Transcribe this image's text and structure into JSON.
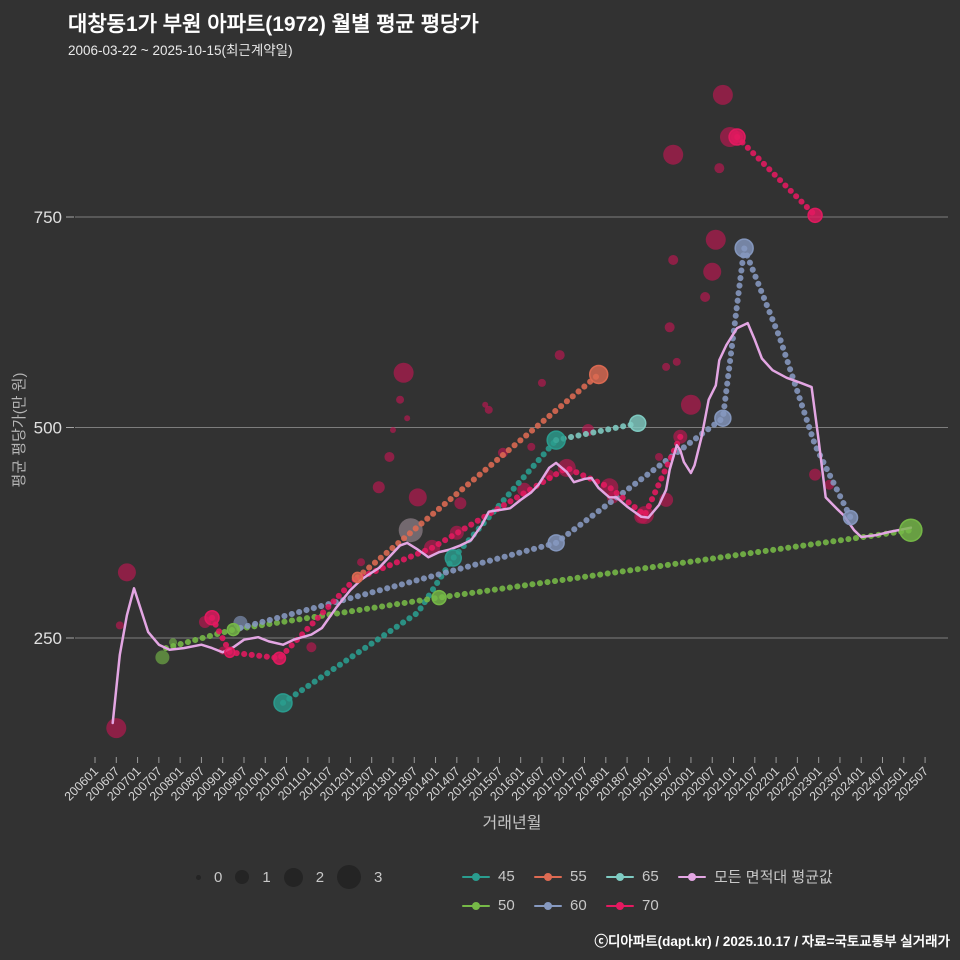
{
  "chart_data": {
    "type": "scatter",
    "title": "대창동1가 부원 아파트(1972) 월별 평균 평당가",
    "subtitle": "2006-03-22 ~ 2025-10-15(최근계약일)",
    "footer": "ⓒ디아파트(dapt.kr) / 2025.10.17 / 자료=국토교통부 실거래가",
    "xlabel": "거래년월",
    "ylabel": "평균 평당가(만 원)",
    "grid": true,
    "background_color": "#323232",
    "grid_color": "#7d7d7d",
    "bubble_color": "#c51552",
    "y_ticks": [
      250,
      500,
      750
    ],
    "y_range": [
      100,
      920
    ],
    "x_tick_labels": [
      "200601",
      "200607",
      "200701",
      "200707",
      "200801",
      "200807",
      "200901",
      "200907",
      "201001",
      "201007",
      "201101",
      "201107",
      "201201",
      "201207",
      "201301",
      "201307",
      "201401",
      "201407",
      "201501",
      "201507",
      "201601",
      "201607",
      "201701",
      "201707",
      "201801",
      "201807",
      "201901",
      "201907",
      "202001",
      "202007",
      "202101",
      "202107",
      "202201",
      "202207",
      "202301",
      "202307",
      "202401",
      "202407",
      "202501",
      "202507"
    ],
    "size_legend": [
      {
        "label": "0",
        "r": 2.5
      },
      {
        "label": "1",
        "r": 7
      },
      {
        "label": "2",
        "r": 9.5
      },
      {
        "label": "3",
        "r": 12
      }
    ],
    "legend": {
      "row1": [
        "45",
        "55",
        "65",
        "avg"
      ],
      "row2": [
        "50",
        "60",
        "70"
      ]
    },
    "series": [
      {
        "name": "45",
        "color": "#2a9d8f",
        "points": [
          [
            201006,
            173
          ],
          [
            201308,
            280
          ],
          [
            201406,
            345
          ],
          [
            201611,
            485
          ]
        ],
        "bubbles": [
          [
            201006,
            173,
            9
          ],
          [
            201406,
            345,
            8
          ],
          [
            201611,
            485,
            9
          ]
        ]
      },
      {
        "name": "50",
        "color": "#76b947",
        "points": [
          [
            200709,
            238
          ],
          [
            200904,
            260
          ],
          [
            201402,
            298
          ],
          [
            202503,
            378
          ]
        ],
        "bubbles": [
          [
            200904,
            260,
            6
          ],
          [
            201402,
            298,
            7
          ],
          [
            202503,
            378,
            11
          ]
        ]
      },
      {
        "name": "55",
        "color": "#dd6a52",
        "points": [
          [
            201203,
            322
          ],
          [
            201711,
            563
          ]
        ],
        "bubbles": [
          [
            201203,
            322,
            5
          ],
          [
            201711,
            563,
            9
          ]
        ]
      },
      {
        "name": "60",
        "color": "#8699c0",
        "points": [
          [
            200906,
            262
          ],
          [
            201111,
            295
          ],
          [
            201611,
            363
          ],
          [
            202010,
            511
          ],
          [
            202104,
            713
          ],
          [
            202202,
            607
          ],
          [
            202212,
            479
          ],
          [
            202310,
            393
          ]
        ],
        "bubbles": [
          [
            201611,
            363,
            8
          ],
          [
            202010,
            511,
            8
          ],
          [
            202104,
            713,
            9
          ],
          [
            202310,
            393,
            7
          ]
        ]
      },
      {
        "name": "65",
        "color": "#7fccc3",
        "points": [
          [
            201611,
            485
          ],
          [
            201810,
            505
          ]
        ],
        "bubbles": [
          [
            201810,
            505,
            8
          ]
        ]
      },
      {
        "name": "70",
        "color": "#e41960",
        "segments": [
          [
            [
              200810,
              274
            ],
            [
              200903,
              233
            ],
            [
              201005,
              226
            ],
            [
              201202,
              319
            ],
            [
              201312,
              357
            ],
            [
              201702,
              452
            ],
            [
              201802,
              429
            ],
            [
              201812,
              396
            ],
            [
              201910,
              489
            ]
          ],
          [
            [
              202102,
              845
            ],
            [
              202212,
              752
            ]
          ]
        ],
        "bubbles": [
          [
            200810,
            274,
            7
          ],
          [
            200903,
            233,
            5
          ],
          [
            201005,
            226,
            6
          ],
          [
            202102,
            845,
            8
          ],
          [
            202212,
            752,
            7
          ]
        ]
      }
    ],
    "average_line": {
      "name": "모든 면적대 평균값",
      "color": "#e3a6e3",
      "points": [
        [
          200606,
          149
        ],
        [
          200608,
          230
        ],
        [
          200610,
          277
        ],
        [
          200612,
          309
        ],
        [
          200702,
          283
        ],
        [
          200704,
          257
        ],
        [
          200707,
          242
        ],
        [
          200710,
          236
        ],
        [
          200802,
          238
        ],
        [
          200807,
          242
        ],
        [
          200810,
          238
        ],
        [
          200901,
          233
        ],
        [
          200904,
          239
        ],
        [
          200907,
          248
        ],
        [
          200911,
          251
        ],
        [
          201002,
          246
        ],
        [
          201006,
          242
        ],
        [
          201009,
          248
        ],
        [
          201102,
          254
        ],
        [
          201105,
          262
        ],
        [
          201109,
          286
        ],
        [
          201201,
          307
        ],
        [
          201204,
          319
        ],
        [
          201206,
          325
        ],
        [
          201209,
          333
        ],
        [
          201301,
          351
        ],
        [
          201303,
          360
        ],
        [
          201305,
          363
        ],
        [
          201308,
          355
        ],
        [
          201310,
          349
        ],
        [
          201311,
          346
        ],
        [
          201402,
          352
        ],
        [
          201405,
          355
        ],
        [
          201408,
          360
        ],
        [
          201411,
          366
        ],
        [
          201502,
          384
        ],
        [
          201504,
          400
        ],
        [
          201507,
          402
        ],
        [
          201510,
          404
        ],
        [
          201601,
          414
        ],
        [
          201604,
          423
        ],
        [
          201606,
          432
        ],
        [
          201609,
          452
        ],
        [
          201611,
          458
        ],
        [
          201702,
          447
        ],
        [
          201704,
          435
        ],
        [
          201707,
          439
        ],
        [
          201709,
          440
        ],
        [
          201711,
          428
        ],
        [
          201802,
          417
        ],
        [
          201804,
          417
        ],
        [
          201807,
          406
        ],
        [
          201811,
          394
        ],
        [
          201901,
          393
        ],
        [
          201904,
          408
        ],
        [
          201906,
          426
        ],
        [
          201907,
          450
        ],
        [
          201909,
          479
        ],
        [
          201910,
          473
        ],
        [
          201911,
          459
        ],
        [
          202001,
          446
        ],
        [
          202002,
          455
        ],
        [
          202004,
          489
        ],
        [
          202006,
          533
        ],
        [
          202008,
          550
        ],
        [
          202009,
          580
        ],
        [
          202011,
          598
        ],
        [
          202102,
          618
        ],
        [
          202105,
          624
        ],
        [
          202107,
          604
        ],
        [
          202109,
          582
        ],
        [
          202112,
          568
        ],
        [
          202204,
          559
        ],
        [
          202208,
          553
        ],
        [
          202211,
          548
        ],
        [
          202301,
          485
        ],
        [
          202303,
          417
        ],
        [
          202306,
          404
        ],
        [
          202308,
          396
        ],
        [
          202311,
          378
        ],
        [
          202401,
          370
        ],
        [
          202405,
          372
        ],
        [
          202409,
          376
        ],
        [
          202503,
          381
        ]
      ]
    },
    "scatter_bubbles": [
      [
        200607,
        143,
        10
      ],
      [
        200610,
        328,
        9
      ],
      [
        200608,
        265,
        4
      ],
      [
        200808,
        269,
        6
      ],
      [
        200901,
        235,
        4
      ],
      [
        200906,
        268,
        7,
        "#8699c0"
      ],
      [
        200708,
        227,
        7,
        "#76b947"
      ],
      [
        200711,
        245,
        4,
        "#76b947"
      ],
      [
        201102,
        239,
        5
      ],
      [
        201204,
        340,
        4
      ],
      [
        201304,
        565,
        10
      ],
      [
        201303,
        533,
        4
      ],
      [
        201306,
        378,
        12,
        "#9b8b95"
      ],
      [
        201308,
        417,
        9
      ],
      [
        201312,
        357,
        8
      ],
      [
        201212,
        465,
        5
      ],
      [
        201209,
        429,
        6
      ],
      [
        201301,
        497,
        3
      ],
      [
        201305,
        511,
        3
      ],
      [
        201407,
        375,
        7
      ],
      [
        201408,
        410,
        6
      ],
      [
        201504,
        521,
        4
      ],
      [
        201503,
        527,
        3
      ],
      [
        201508,
        470,
        5
      ],
      [
        201602,
        426,
        7
      ],
      [
        201604,
        477,
        4
      ],
      [
        201607,
        553,
        4
      ],
      [
        201612,
        586,
        5
      ],
      [
        201609,
        444,
        5
      ],
      [
        201702,
        452,
        9
      ],
      [
        201708,
        497,
        6
      ],
      [
        201802,
        429,
        9
      ],
      [
        201803,
        417,
        6
      ],
      [
        201811,
        394,
        7
      ],
      [
        201812,
        396,
        9
      ],
      [
        201904,
        465,
        4
      ],
      [
        201906,
        414,
        7
      ],
      [
        201908,
        824,
        10
      ],
      [
        201908,
        699,
        5
      ],
      [
        201909,
        578,
        4
      ],
      [
        201906,
        572,
        4
      ],
      [
        201907,
        619,
        5
      ],
      [
        202001,
        527,
        10
      ],
      [
        201910,
        489,
        7
      ],
      [
        202005,
        655,
        5
      ],
      [
        202007,
        685,
        9
      ],
      [
        202008,
        723,
        10
      ],
      [
        202009,
        808,
        5
      ],
      [
        202010,
        895,
        10
      ],
      [
        202012,
        845,
        10
      ],
      [
        202102,
        845,
        6
      ],
      [
        202212,
        444,
        6
      ],
      [
        202304,
        432,
        5
      ]
    ]
  }
}
